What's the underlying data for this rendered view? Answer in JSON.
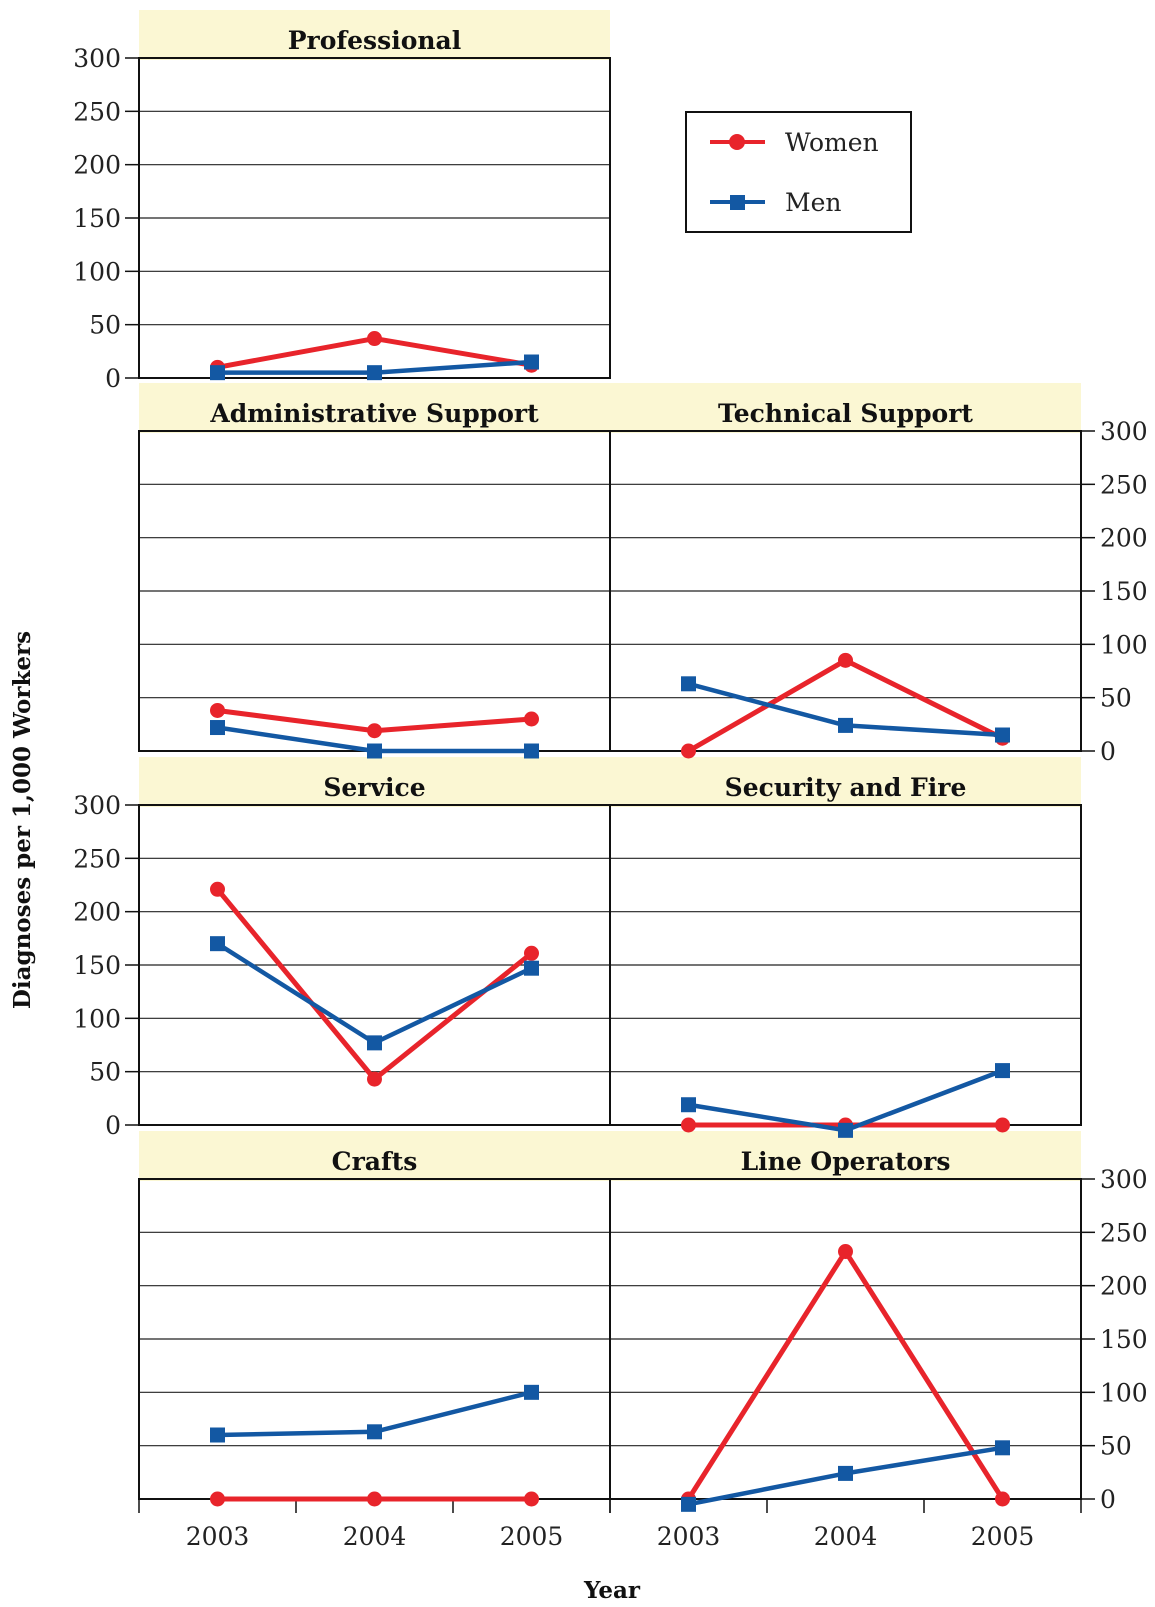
{
  "colors": {
    "women": "#e8242b",
    "men": "#1358a3",
    "header_band": "#fbf7d3",
    "grid": "#222222"
  },
  "chart_data": {
    "type": "line",
    "xlabel": "Year",
    "ylabel": "Diagnoses per 1,000 Workers",
    "categories": [
      "2003",
      "2004",
      "2005"
    ],
    "ylim": [
      0,
      300
    ],
    "yticks": [
      "0",
      "50",
      "100",
      "150",
      "200",
      "250",
      "300"
    ],
    "grid": true,
    "legend": {
      "position": "top-right",
      "entries": [
        {
          "name": "Women",
          "marker": "circle"
        },
        {
          "name": "Men",
          "marker": "square"
        }
      ]
    },
    "panels": [
      {
        "title": "Professional",
        "series": [
          {
            "name": "Women",
            "values": [
              10,
              37,
              12
            ]
          },
          {
            "name": "Men",
            "values": [
              5,
              5,
              15
            ]
          }
        ]
      },
      {
        "title": "Administrative Support",
        "series": [
          {
            "name": "Women",
            "values": [
              38,
              19,
              30
            ]
          },
          {
            "name": "Men",
            "values": [
              22,
              0,
              0
            ]
          }
        ]
      },
      {
        "title": "Technical Support",
        "series": [
          {
            "name": "Women",
            "values": [
              0,
              85,
              12
            ]
          },
          {
            "name": "Men",
            "values": [
              63,
              24,
              15
            ]
          }
        ]
      },
      {
        "title": "Service",
        "series": [
          {
            "name": "Women",
            "values": [
              221,
              43,
              161
            ]
          },
          {
            "name": "Men",
            "values": [
              170,
              77,
              147
            ]
          }
        ]
      },
      {
        "title": "Security and Fire",
        "series": [
          {
            "name": "Women",
            "values": [
              0,
              0,
              0
            ]
          },
          {
            "name": "Men",
            "values": [
              19,
              -5,
              51
            ]
          }
        ]
      },
      {
        "title": "Crafts",
        "series": [
          {
            "name": "Women",
            "values": [
              0,
              0,
              0
            ]
          },
          {
            "name": "Men",
            "values": [
              60,
              63,
              100
            ]
          }
        ]
      },
      {
        "title": "Line Operators",
        "series": [
          {
            "name": "Women",
            "values": [
              0,
              232,
              0
            ]
          },
          {
            "name": "Men",
            "values": [
              -5,
              24,
              48
            ]
          }
        ]
      }
    ]
  }
}
